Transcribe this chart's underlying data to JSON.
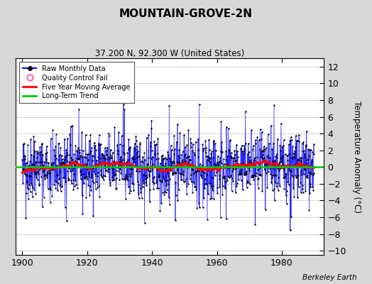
{
  "title": "MOUNTAIN-GROVE-2N",
  "subtitle": "37.200 N, 92.300 W (United States)",
  "ylabel": "Temperature Anomaly (°C)",
  "credit": "Berkeley Earth",
  "xlim": [
    1898,
    1993
  ],
  "ylim": [
    -10.5,
    13
  ],
  "yticks": [
    -10,
    -8,
    -6,
    -4,
    -2,
    0,
    2,
    4,
    6,
    8,
    10,
    12
  ],
  "xticks": [
    1900,
    1920,
    1940,
    1960,
    1980
  ],
  "start_year": 1900,
  "num_months": 1080,
  "bg_color": "#d8d8d8",
  "plot_bg_color": "#ffffff",
  "raw_line_color": "#0000ff",
  "raw_dot_color": "#000000",
  "qc_fail_color": "#ff69b4",
  "moving_avg_color": "#ff0000",
  "trend_color": "#00cc00",
  "seed": 42
}
